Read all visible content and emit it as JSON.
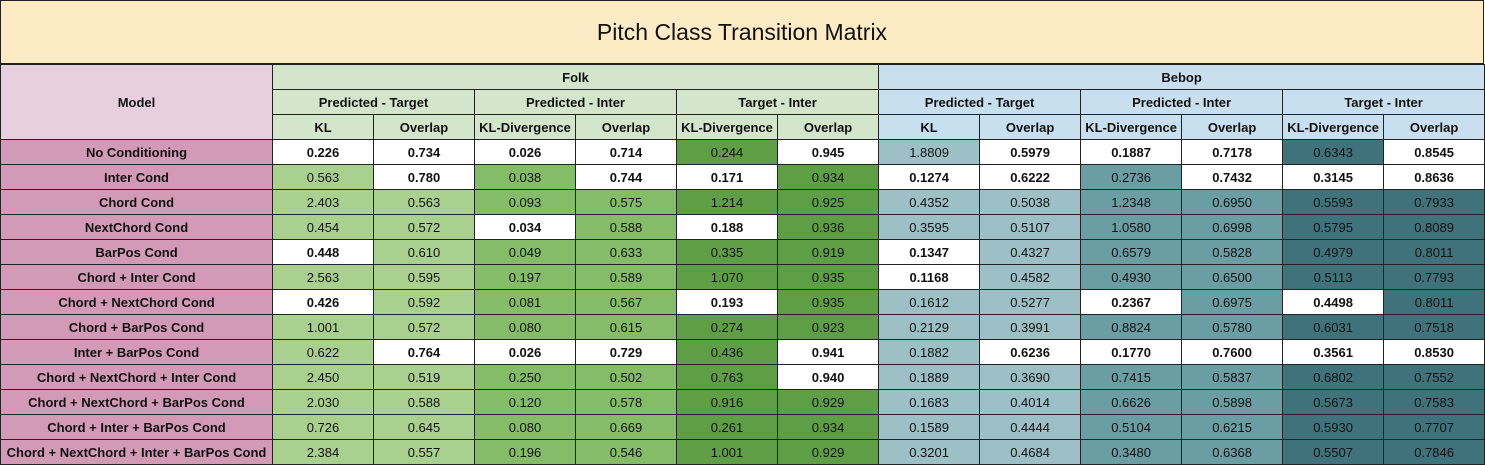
{
  "title": "Pitch Class Transition Matrix",
  "header": {
    "model": "Model",
    "groups": [
      "Folk",
      "Bebop"
    ],
    "subgroups": [
      "Predicted - Target",
      "Predicted - Inter",
      "Target - Inter",
      "Predicted - Target",
      "Predicted - Inter",
      "Target - Inter"
    ],
    "metrics": [
      "KL",
      "Overlap",
      "KL-Divergence",
      "Overlap",
      "KL-Divergence",
      "Overlap",
      "KL",
      "Overlap",
      "KL-Divergence",
      "Overlap",
      "KL-Divergence",
      "Overlap"
    ]
  },
  "colors": {
    "title_bg": "#fdebc5",
    "folk_header": "#d3e6cb",
    "bebop_header": "#c8dff0",
    "model_header": "#e8cfe0",
    "model_cell": "#d39ab8",
    "col_colors": [
      "#a9d08e",
      "#a9d08e",
      "#84bc68",
      "#84bc68",
      "#5e9e45",
      "#5e9e45",
      "#9dc0c6",
      "#9dc0c6",
      "#6a9ea4",
      "#6a9ea4",
      "#3f727b",
      "#3f727b"
    ],
    "best": "#ffffff"
  },
  "rows": [
    {
      "model": "No Conditioning",
      "values": [
        "0.226",
        "0.734",
        "0.026",
        "0.714",
        "0.244",
        "0.945",
        "1.8809",
        "0.5979",
        "0.1887",
        "0.7178",
        "0.6343",
        "0.8545"
      ],
      "best": [
        1,
        1,
        1,
        1,
        0,
        1,
        0,
        1,
        1,
        1,
        0,
        1
      ]
    },
    {
      "model": "Inter Cond",
      "values": [
        "0.563",
        "0.780",
        "0.038",
        "0.744",
        "0.171",
        "0.934",
        "0.1274",
        "0.6222",
        "0.2736",
        "0.7432",
        "0.3145",
        "0.8636"
      ],
      "best": [
        0,
        1,
        0,
        1,
        1,
        0,
        1,
        1,
        0,
        1,
        1,
        1
      ]
    },
    {
      "model": "Chord Cond",
      "values": [
        "2.403",
        "0.563",
        "0.093",
        "0.575",
        "1.214",
        "0.925",
        "0.4352",
        "0.5038",
        "1.2348",
        "0.6950",
        "0.5593",
        "0.7933"
      ],
      "best": [
        0,
        0,
        0,
        0,
        0,
        0,
        0,
        0,
        0,
        0,
        0,
        0
      ]
    },
    {
      "model": "NextChord Cond",
      "values": [
        "0.454",
        "0.572",
        "0.034",
        "0.588",
        "0.188",
        "0.936",
        "0.3595",
        "0.5107",
        "1.0580",
        "0.6998",
        "0.5795",
        "0.8089"
      ],
      "best": [
        0,
        0,
        1,
        0,
        1,
        0,
        0,
        0,
        0,
        0,
        0,
        0
      ]
    },
    {
      "model": "BarPos Cond",
      "values": [
        "0.448",
        "0.610",
        "0.049",
        "0.633",
        "0.335",
        "0.919",
        "0.1347",
        "0.4327",
        "0.6579",
        "0.5828",
        "0.4979",
        "0.8011"
      ],
      "best": [
        1,
        0,
        0,
        0,
        0,
        0,
        1,
        0,
        0,
        0,
        0,
        0
      ]
    },
    {
      "model": "Chord + Inter Cond",
      "values": [
        "2.563",
        "0.595",
        "0.197",
        "0.589",
        "1.070",
        "0.935",
        "0.1168",
        "0.4582",
        "0.4930",
        "0.6500",
        "0.5113",
        "0.7793"
      ],
      "best": [
        0,
        0,
        0,
        0,
        0,
        0,
        1,
        0,
        0,
        0,
        0,
        0
      ]
    },
    {
      "model": "Chord + NextChord Cond",
      "values": [
        "0.426",
        "0.592",
        "0.081",
        "0.567",
        "0.193",
        "0.935",
        "0.1612",
        "0.5277",
        "0.2367",
        "0.6975",
        "0.4498",
        "0.8011"
      ],
      "best": [
        1,
        0,
        0,
        0,
        1,
        0,
        0,
        0,
        1,
        0,
        1,
        0
      ]
    },
    {
      "model": "Chord + BarPos Cond",
      "values": [
        "1.001",
        "0.572",
        "0.080",
        "0.615",
        "0.274",
        "0.923",
        "0.2129",
        "0.3991",
        "0.8824",
        "0.5780",
        "0.6031",
        "0.7518"
      ],
      "best": [
        0,
        0,
        0,
        0,
        0,
        0,
        0,
        0,
        0,
        0,
        0,
        0
      ]
    },
    {
      "model": "Inter + BarPos Cond",
      "values": [
        "0.622",
        "0.764",
        "0.026",
        "0.729",
        "0.436",
        "0.941",
        "0.1882",
        "0.6236",
        "0.1770",
        "0.7600",
        "0.3561",
        "0.8530"
      ],
      "best": [
        0,
        1,
        1,
        1,
        0,
        1,
        0,
        1,
        1,
        1,
        1,
        1
      ]
    },
    {
      "model": "Chord + NextChord + Inter Cond",
      "values": [
        "2.450",
        "0.519",
        "0.250",
        "0.502",
        "0.763",
        "0.940",
        "0.1889",
        "0.3690",
        "0.7415",
        "0.5837",
        "0.6802",
        "0.7552"
      ],
      "best": [
        0,
        0,
        0,
        0,
        0,
        1,
        0,
        0,
        0,
        0,
        0,
        0
      ]
    },
    {
      "model": "Chord + NextChord + BarPos Cond",
      "values": [
        "2.030",
        "0.588",
        "0.120",
        "0.578",
        "0.916",
        "0.929",
        "0.1683",
        "0.4014",
        "0.6626",
        "0.5898",
        "0.5673",
        "0.7583"
      ],
      "best": [
        0,
        0,
        0,
        0,
        0,
        0,
        0,
        0,
        0,
        0,
        0,
        0
      ]
    },
    {
      "model": "Chord + Inter + BarPos Cond",
      "values": [
        "0.726",
        "0.645",
        "0.080",
        "0.669",
        "0.261",
        "0.934",
        "0.1589",
        "0.4444",
        "0.5104",
        "0.6215",
        "0.5930",
        "0.7707"
      ],
      "best": [
        0,
        0,
        0,
        0,
        0,
        0,
        0,
        0,
        0,
        0,
        0,
        0
      ]
    },
    {
      "model": "Chord + NextChord + Inter + BarPos Cond",
      "values": [
        "2.384",
        "0.557",
        "0.196",
        "0.546",
        "1.001",
        "0.929",
        "0.3201",
        "0.4684",
        "0.3480",
        "0.6368",
        "0.5507",
        "0.7846"
      ],
      "best": [
        0,
        0,
        0,
        0,
        0,
        0,
        0,
        0,
        0,
        0,
        0,
        0
      ]
    }
  ]
}
